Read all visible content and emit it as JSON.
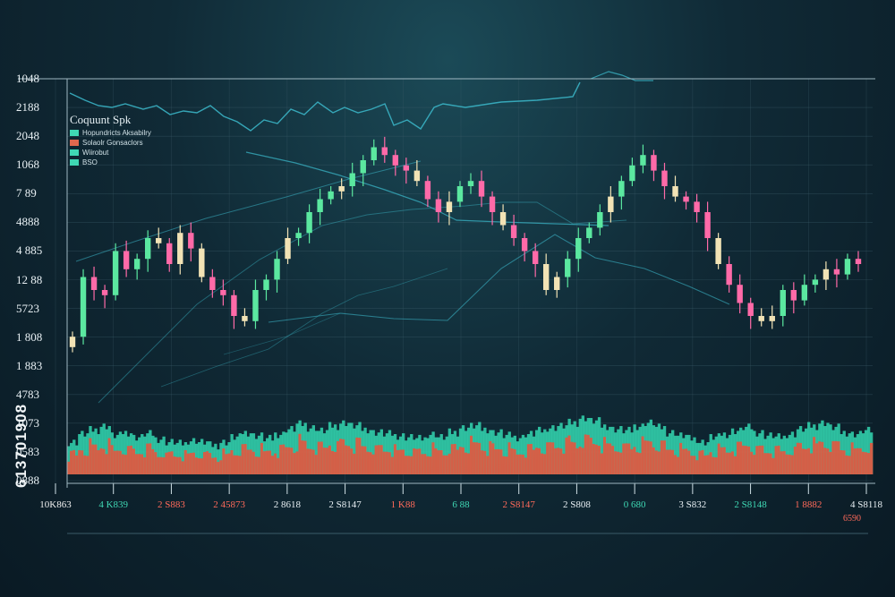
{
  "chart_data": {
    "type": "candlestick",
    "title": "Coquunt Spk",
    "legend": [
      {
        "label": "Hopundricts Aksabilry",
        "color": "#3fd8b4"
      },
      {
        "label": "Solaolr Gonsaclors",
        "color": "#e0684e"
      },
      {
        "label": "Wiirobut",
        "color": "#3fd8b4"
      },
      {
        "label": "BSO",
        "color": "#3fd8b4"
      }
    ],
    "y_tick_labels": [
      "1048",
      "2188",
      "2048",
      "1068",
      "7 89",
      "4888",
      "4 885",
      "12 88",
      "5723",
      "1 808",
      "1 883",
      "4783",
      "1073",
      "0583",
      "0888"
    ],
    "x_tick_labels": [
      "10K863",
      "4 K839",
      "2 S883",
      "2 45873",
      "2 8618",
      "2 S8147",
      "1 K88",
      "6 88",
      "2 S8147",
      "2 S808",
      "0 680",
      "3 S832",
      "2 S8148",
      "1 8882",
      "4 S8118"
    ],
    "x_tick_colors": [
      "#f2f2f2",
      "#3fd8b4",
      "#ff6a5a",
      "#ff6a5a",
      "#e8f0f4",
      "#e8f0f4",
      "#ff6a5a",
      "#3fd8b4",
      "#ff6a5a",
      "#e8f0f4",
      "#3fd8b4",
      "#e8f0f4",
      "#3fd8b4",
      "#ff6a5a",
      "#e8f0f4"
    ],
    "corner_label": "6590",
    "watermark_side": "613701908",
    "ylim": [
      0,
      100
    ],
    "candles_close": [
      22,
      45,
      40,
      38,
      55,
      48,
      52,
      60,
      58,
      50,
      62,
      56,
      45,
      40,
      38,
      30,
      28,
      40,
      44,
      52,
      60,
      62,
      70,
      75,
      78,
      80,
      85,
      90,
      95,
      92,
      88,
      86,
      82,
      75,
      70,
      74,
      80,
      82,
      76,
      70,
      65,
      60,
      55,
      50,
      40,
      45,
      52,
      60,
      64,
      70,
      76,
      82,
      88,
      92,
      86,
      80,
      76,
      74,
      70,
      60,
      50,
      42,
      35,
      30,
      28,
      30,
      40,
      36,
      42,
      44,
      48,
      46,
      52,
      50
    ],
    "volume": [
      40,
      50,
      55,
      60,
      48,
      52,
      46,
      50,
      44,
      40,
      38,
      42,
      40,
      36,
      40,
      46,
      52,
      48,
      44,
      50,
      56,
      62,
      58,
      54,
      60,
      64,
      60,
      56,
      52,
      50,
      48,
      46,
      44,
      50,
      46,
      52,
      58,
      60,
      56,
      52,
      48,
      46,
      50,
      54,
      58,
      60,
      64,
      70,
      66,
      60,
      56,
      54,
      60,
      64,
      58,
      52,
      48,
      44,
      40,
      46,
      50,
      54,
      58,
      52,
      48,
      46,
      50,
      56,
      60,
      64,
      58,
      52,
      50,
      54
    ]
  },
  "colors": {
    "up": "#5be8a0",
    "down": "#ff6aa8",
    "neutral": "#f2e3b5",
    "line": "#3ab3c4",
    "grid": "#3b5b68",
    "volume_teal": "#33d6b0",
    "volume_red": "#e5553e"
  }
}
